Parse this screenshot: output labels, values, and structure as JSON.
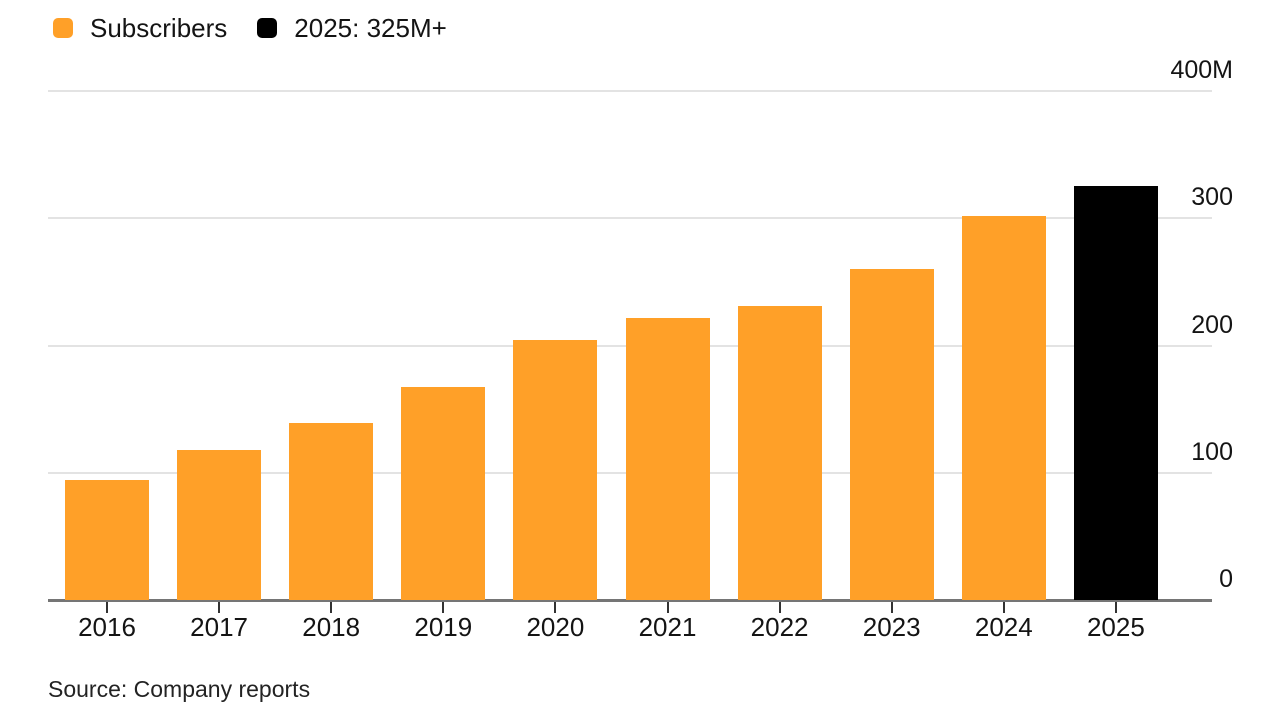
{
  "legend": {
    "items": [
      {
        "label": "Subscribers",
        "color": "#FFA028",
        "swatch": "orange-rounded-square"
      },
      {
        "label": "2025: 325M+",
        "color": "#000000",
        "swatch": "black-rounded-square"
      }
    ]
  },
  "source": {
    "text": "Source: Company reports"
  },
  "chart_data": {
    "type": "bar",
    "title": "",
    "categories": [
      "2016",
      "2017",
      "2018",
      "2019",
      "2020",
      "2021",
      "2022",
      "2023",
      "2024",
      "2025"
    ],
    "series": [
      {
        "name": "Subscribers",
        "values": [
          94,
          118,
          139,
          167,
          204,
          222,
          231,
          260,
          302,
          325
        ]
      }
    ],
    "unit": "M",
    "bar_color": "#FFA028",
    "highlight": {
      "index": 9,
      "category": "2025",
      "label": "2025: 325M+",
      "color": "#000000",
      "value": 325
    },
    "ylim": [
      0,
      400
    ],
    "yticks": [
      {
        "value": 400,
        "label": "400M"
      },
      {
        "value": 300,
        "label": "300"
      },
      {
        "value": 200,
        "label": "200"
      },
      {
        "value": 100,
        "label": "100"
      },
      {
        "value": 0,
        "label": "0"
      }
    ],
    "grid": "horizontal-light-gray",
    "ytick_side": "right",
    "legend_position": "top-left",
    "xlabel": "",
    "ylabel": "",
    "source": "Source: Company reports"
  }
}
